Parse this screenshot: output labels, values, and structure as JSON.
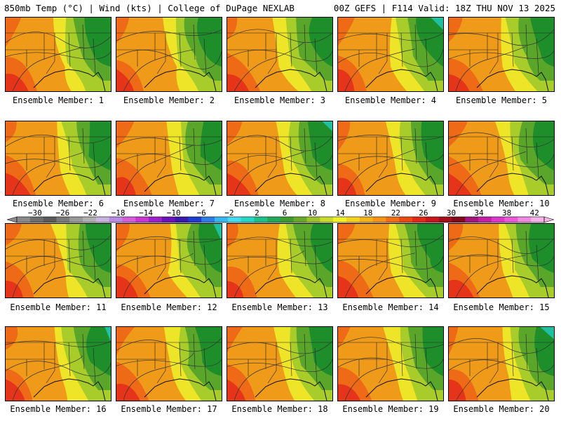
{
  "header": {
    "left": "850mb Temp (°C) | Wind (kts) | College of DuPage NEXLAB",
    "right": "00Z GEFS | F114 Valid: 18Z THU NOV 13 2025"
  },
  "caption_prefix": "Ensemble Member:",
  "members": [
    {
      "label": "Ensemble Member: 1"
    },
    {
      "label": "Ensemble Member: 2"
    },
    {
      "label": "Ensemble Member: 3"
    },
    {
      "label": "Ensemble Member: 4"
    },
    {
      "label": "Ensemble Member: 5"
    },
    {
      "label": "Ensemble Member: 6"
    },
    {
      "label": "Ensemble Member: 7"
    },
    {
      "label": "Ensemble Member: 8"
    },
    {
      "label": "Ensemble Member: 9"
    },
    {
      "label": "Ensemble Member: 10"
    },
    {
      "label": "Ensemble Member: 11"
    },
    {
      "label": "Ensemble Member: 12"
    },
    {
      "label": "Ensemble Member: 13"
    },
    {
      "label": "Ensemble Member: 14"
    },
    {
      "label": "Ensemble Member: 15"
    },
    {
      "label": "Ensemble Member: 16"
    },
    {
      "label": "Ensemble Member: 17"
    },
    {
      "label": "Ensemble Member: 18"
    },
    {
      "label": "Ensemble Member: 19"
    },
    {
      "label": "Ensemble Member: 20"
    }
  ],
  "colorbar": {
    "ticks": [
      "−30",
      "−26",
      "−22",
      "−18",
      "−14",
      "−10",
      "−6",
      "−2",
      "2",
      "6",
      "10",
      "14",
      "18",
      "22",
      "26",
      "30",
      "34",
      "38",
      "42"
    ],
    "colors": [
      "#8a8a8a",
      "#6e6e6e",
      "#5a5a5a",
      "#7a7a7a",
      "#999999",
      "#b0b0b0",
      "#c9b3df",
      "#b98be0",
      "#d35fd8",
      "#c837d0",
      "#9c22c8",
      "#6a14b8",
      "#3a1aa8",
      "#1f3ccf",
      "#2f7be6",
      "#38b7ee",
      "#44dbf0",
      "#27d6c4",
      "#1fbf8a",
      "#22a85a",
      "#3f9a2f",
      "#6aa82a",
      "#9cc32a",
      "#c9dc2c",
      "#f0f02a",
      "#f2d21f",
      "#f4b21a",
      "#f59316",
      "#f06f14",
      "#e84a12",
      "#e02a18",
      "#c8171c",
      "#a30f1a",
      "#7e0c1a",
      "#a1177c",
      "#c221a4",
      "#dc38c8",
      "#ea5ad8",
      "#f08ae0",
      "#f4b4e8"
    ],
    "palette": {
      "green_dark": "#1e8e2a",
      "green": "#5aa62a",
      "yellow_green": "#a8cc2a",
      "yellow": "#eee528",
      "orange": "#f09a1a",
      "orange_red": "#ee6a16",
      "red": "#e6341a",
      "teal": "#1fbfa0"
    }
  }
}
